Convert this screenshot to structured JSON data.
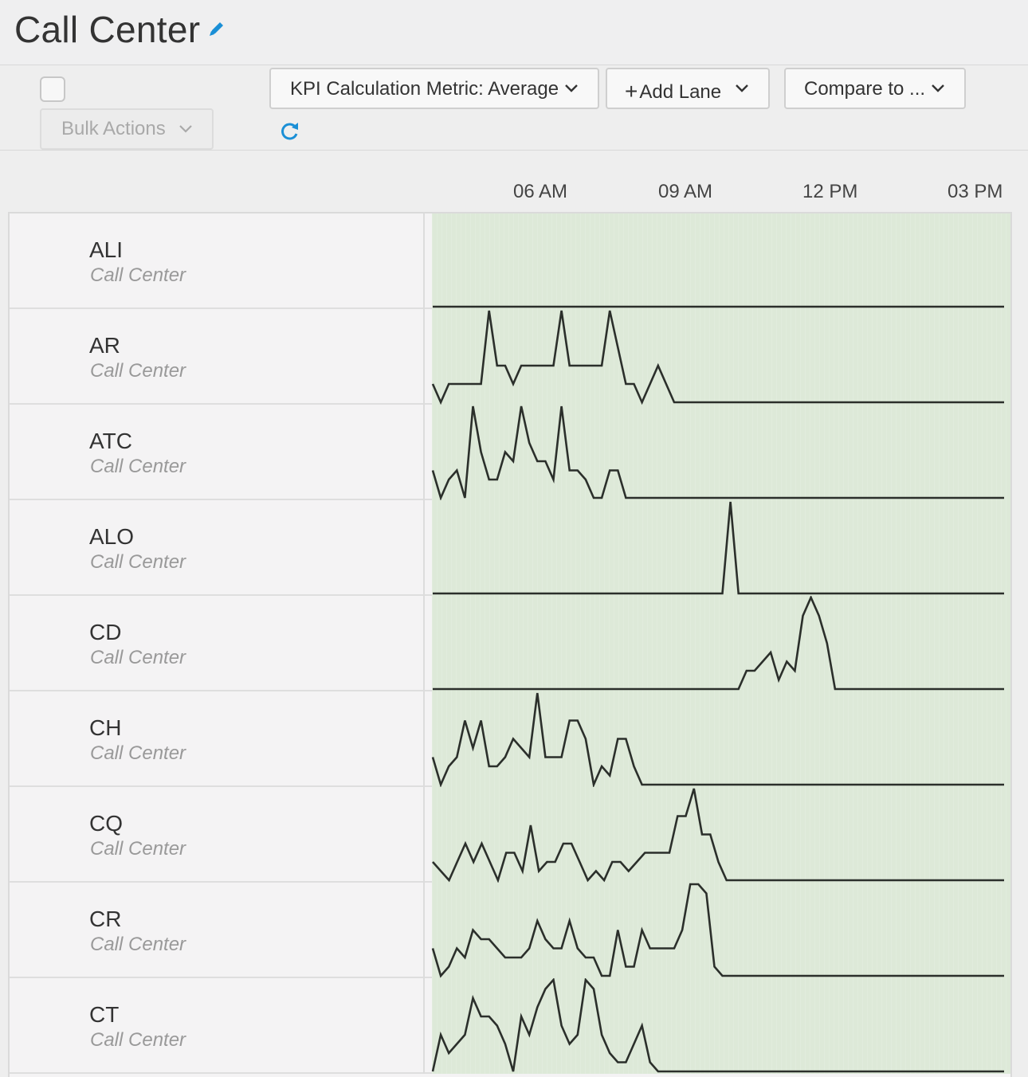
{
  "page": {
    "title": "Call Center"
  },
  "toolbar": {
    "bulk_actions_label": "Bulk Actions",
    "kpi_label": "KPI Calculation Metric: Average",
    "add_lane_label": "Add Lane",
    "add_lane_prefix": "+",
    "compare_label": "Compare to ..."
  },
  "colors": {
    "accent": "#1a8fd6",
    "sparkline": "#2b2f2b",
    "lane_fill": "#dde9d8"
  },
  "axis": {
    "ticks": [
      "06 AM",
      "09 AM",
      "12 PM",
      "03 PM"
    ]
  },
  "lanes": [
    {
      "name": "ALI",
      "service": "Call Center",
      "series": [
        0,
        0,
        0,
        0,
        0,
        0,
        0,
        0,
        0,
        0,
        0,
        0,
        0,
        0,
        0,
        0,
        0,
        0,
        0,
        0,
        0,
        0,
        0,
        0,
        0,
        0,
        0,
        0,
        0,
        0,
        0,
        0,
        0,
        0,
        0,
        0,
        0,
        0,
        0,
        0,
        0,
        0,
        0,
        0,
        0,
        0,
        0,
        0,
        0,
        0,
        0,
        0,
        0,
        0,
        0,
        0,
        0,
        0,
        0,
        0,
        0,
        0,
        0,
        0,
        0,
        0,
        0,
        0,
        0,
        0,
        0,
        0
      ]
    },
    {
      "name": "AR",
      "service": "Call Center",
      "series": [
        0.2,
        0,
        0.2,
        0.2,
        0.2,
        0.2,
        0.2,
        1,
        0.4,
        0.4,
        0.2,
        0.4,
        0.4,
        0.4,
        0.4,
        0.4,
        1,
        0.4,
        0.4,
        0.4,
        0.4,
        0.4,
        1,
        0.6,
        0.2,
        0.2,
        0,
        0.2,
        0.4,
        0.2,
        0,
        0,
        0,
        0,
        0,
        0,
        0,
        0,
        0,
        0,
        0,
        0,
        0,
        0,
        0,
        0,
        0,
        0,
        0,
        0,
        0,
        0,
        0,
        0,
        0,
        0,
        0,
        0,
        0,
        0,
        0,
        0,
        0,
        0,
        0,
        0,
        0,
        0,
        0,
        0,
        0,
        0
      ]
    },
    {
      "name": "ATC",
      "service": "Call Center",
      "series": [
        0.3,
        0,
        0.2,
        0.3,
        0,
        1,
        0.5,
        0.2,
        0.2,
        0.5,
        0.4,
        1,
        0.6,
        0.4,
        0.4,
        0.2,
        1,
        0.3,
        0.3,
        0.2,
        0,
        0,
        0.3,
        0.3,
        0,
        0,
        0,
        0,
        0,
        0,
        0,
        0,
        0,
        0,
        0,
        0,
        0,
        0,
        0,
        0,
        0,
        0,
        0,
        0,
        0,
        0,
        0,
        0,
        0,
        0,
        0,
        0,
        0,
        0,
        0,
        0,
        0,
        0,
        0,
        0,
        0,
        0,
        0,
        0,
        0,
        0,
        0,
        0,
        0,
        0,
        0,
        0
      ]
    },
    {
      "name": "ALO",
      "service": "Call Center",
      "series": [
        0,
        0,
        0,
        0,
        0,
        0,
        0,
        0,
        0,
        0,
        0,
        0,
        0,
        0,
        0,
        0,
        0,
        0,
        0,
        0,
        0,
        0,
        0,
        0,
        0,
        0,
        0,
        0,
        0,
        0,
        0,
        0,
        0,
        0,
        0,
        0,
        0,
        1,
        0,
        0,
        0,
        0,
        0,
        0,
        0,
        0,
        0,
        0,
        0,
        0,
        0,
        0,
        0,
        0,
        0,
        0,
        0,
        0,
        0,
        0,
        0,
        0,
        0,
        0,
        0,
        0,
        0,
        0,
        0,
        0,
        0,
        0
      ]
    },
    {
      "name": "CD",
      "service": "Call Center",
      "series": [
        0,
        0,
        0,
        0,
        0,
        0,
        0,
        0,
        0,
        0,
        0,
        0,
        0,
        0,
        0,
        0,
        0,
        0,
        0,
        0,
        0,
        0,
        0,
        0,
        0,
        0,
        0,
        0,
        0,
        0,
        0,
        0,
        0,
        0,
        0,
        0,
        0,
        0,
        0,
        0.2,
        0.2,
        0.3,
        0.4,
        0.1,
        0.3,
        0.2,
        0.8,
        1,
        0.8,
        0.5,
        0,
        0,
        0,
        0,
        0,
        0,
        0,
        0,
        0,
        0,
        0,
        0,
        0,
        0,
        0,
        0,
        0,
        0,
        0,
        0,
        0,
        0
      ]
    },
    {
      "name": "CH",
      "service": "Call Center",
      "series": [
        0.3,
        0,
        0.2,
        0.3,
        0.7,
        0.4,
        0.7,
        0.2,
        0.2,
        0.3,
        0.5,
        0.4,
        0.3,
        1,
        0.3,
        0.3,
        0.3,
        0.7,
        0.7,
        0.5,
        0,
        0.2,
        0.1,
        0.5,
        0.5,
        0.2,
        0,
        0,
        0,
        0,
        0,
        0,
        0,
        0,
        0,
        0,
        0,
        0,
        0,
        0,
        0,
        0,
        0,
        0,
        0,
        0,
        0,
        0,
        0,
        0,
        0,
        0,
        0,
        0,
        0,
        0,
        0,
        0,
        0,
        0,
        0,
        0,
        0,
        0,
        0,
        0,
        0,
        0,
        0,
        0,
        0,
        0
      ]
    },
    {
      "name": "CQ",
      "service": "Call Center",
      "series": [
        0.2,
        0.1,
        0,
        0.2,
        0.4,
        0.2,
        0.4,
        0.2,
        0,
        0.3,
        0.3,
        0.1,
        0.6,
        0.1,
        0.2,
        0.2,
        0.4,
        0.4,
        0.2,
        0,
        0.1,
        0,
        0.2,
        0.2,
        0.1,
        0.2,
        0.3,
        0.3,
        0.3,
        0.3,
        0.7,
        0.7,
        1,
        0.5,
        0.5,
        0.2,
        0,
        0,
        0,
        0,
        0,
        0,
        0,
        0,
        0,
        0,
        0,
        0,
        0,
        0,
        0,
        0,
        0,
        0,
        0,
        0,
        0,
        0,
        0,
        0,
        0,
        0,
        0,
        0,
        0,
        0,
        0,
        0,
        0,
        0,
        0
      ]
    },
    {
      "name": "CR",
      "service": "Call Center",
      "series": [
        0.3,
        0,
        0.1,
        0.3,
        0.2,
        0.5,
        0.4,
        0.4,
        0.3,
        0.2,
        0.2,
        0.2,
        0.3,
        0.6,
        0.4,
        0.3,
        0.3,
        0.6,
        0.3,
        0.2,
        0.2,
        0,
        0,
        0.5,
        0.1,
        0.1,
        0.5,
        0.3,
        0.3,
        0.3,
        0.3,
        0.5,
        1,
        1,
        0.9,
        0.1,
        0,
        0,
        0,
        0,
        0,
        0,
        0,
        0,
        0,
        0,
        0,
        0,
        0,
        0,
        0,
        0,
        0,
        0,
        0,
        0,
        0,
        0,
        0,
        0,
        0,
        0,
        0,
        0,
        0,
        0,
        0,
        0,
        0,
        0,
        0,
        0
      ]
    },
    {
      "name": "CT",
      "service": "Call Center",
      "series": [
        0,
        0.4,
        0.2,
        0.3,
        0.4,
        0.8,
        0.6,
        0.6,
        0.5,
        0.3,
        0,
        0.6,
        0.4,
        0.7,
        0.9,
        1,
        0.5,
        0.3,
        0.4,
        1,
        0.9,
        0.4,
        0.2,
        0.1,
        0.1,
        0.3,
        0.5,
        0.1,
        0,
        0,
        0,
        0,
        0,
        0,
        0,
        0,
        0,
        0,
        0,
        0,
        0,
        0,
        0,
        0,
        0,
        0,
        0,
        0,
        0,
        0,
        0,
        0,
        0,
        0,
        0,
        0,
        0,
        0,
        0,
        0,
        0,
        0,
        0,
        0,
        0,
        0,
        0,
        0,
        0,
        0,
        0,
        0
      ]
    }
  ]
}
